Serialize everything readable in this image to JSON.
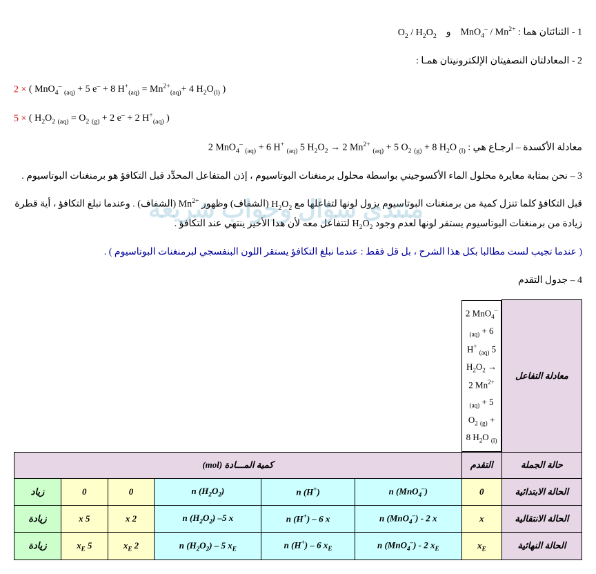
{
  "lines": {
    "l1_lead": "1 - الثنائتان هما :",
    "l1_pair1": "MnO₄⁻ / Mn²⁺",
    "l1_and": "و",
    "l1_pair2": "O₂ / H₂O₂",
    "l2": "2 - المعادلتان النصفيتان الإلكترونيتان همـا :",
    "eq1_coef": "2 ×",
    "eq1_body": "( MnO₄⁻ (aq)  +  5 e⁻ + 8 H⁺(aq)  = Mn²⁺(aq)+ 4 H₂O(l) )",
    "eq2_coef": "5 ×",
    "eq2_body": "( H₂O₂ (aq)   =  O₂ (g)  +  2 e⁻  + 2 H⁺(aq) )",
    "oxid_lead": "معادلة الأكسدة – ارجـاع هي :",
    "oxid_eq": "2 MnO₄⁻ (aq)  +  6 H⁺ (aq)  5 H₂O₂   →   2 Mn²⁺ (aq)  +  5 O₂ (g)  +  8 H₂O (l)",
    "l3": "3 – نحن بمثابة معايرة محلول الماء الأكسوجيني بواسطة  محلول برمنغنات البوتاسيوم  ، إذن المتفاعل المحدِّد قبل التكافؤ هو برمنغنات البوتاسيوم .",
    "p_before": "قبل التكافؤ كلما تنزل كمية من برمنغنات البوتاسيوم يزول لونها لتفاعلها مع",
    "p_h2o2": "H₂O₂",
    "p_mid": "(الشفاف) وظهور",
    "p_mn": "Mn²⁺",
    "p_after": "(الشفاف) . وعندما نبلغ التكافؤ ، أية قطرة زيادة من برمنغنات البوتاسيوم يستقر لونها لعدم وجود",
    "p_h2o2b": "H₂O₂",
    "p_end": "لتتفاعل معه لأن هذا الأخير ينتهي عند التكافؤ .",
    "note": "( عندما تجيب لست مطالبا بكل هذا الشرح ، بل قل فقط  : عندما نبلغ التكافؤ يستقر اللون البنفسجي لبرمنغنات البوتاسيوم ) .",
    "l4": "4 – جدول التقدم",
    "watermark": "منتدى سؤال وجواب شريعة"
  },
  "table": {
    "h_reaction": "معادلة التفاعل",
    "reaction": "2 MnO₄⁻ (aq)  +  6 H⁺ (aq)   5 H₂O₂       →       2 Mn²⁺ (aq)   +     5 O₂ (g)   +     8 H₂O (l)",
    "h_state": "حالة الجملة",
    "h_progress": "التقدم",
    "h_qty": "كمية المـــادة    (mol)",
    "rows": [
      {
        "state": "الحالة الابتدائية",
        "x": "0",
        "c1": "n (MnO₄⁻)",
        "c2": "n (H⁺)",
        "c3": "n (H₂O₂)",
        "c4": "0",
        "c5": "0",
        "c6": "زياد"
      },
      {
        "state": "الحالة الانتقالية",
        "x": "x",
        "c1": "n (MnO₄⁻) - 2 x",
        "c2": "n (H⁺) – 6  x",
        "c3": "n (H₂O₂) –5  x",
        "c4": "2 x",
        "c5": "5 x",
        "c6": "زيادة"
      },
      {
        "state": "الحالة النهائية",
        "x": "xE",
        "c1": "n (MnO₄⁻) - 2 xE",
        "c2": "n (H⁺) – 6  xE",
        "c3": "n (H₂O₂) – 5  xE",
        "c4": "2 xE",
        "c5": "5 xE",
        "c6": "زيادة"
      }
    ]
  },
  "style": {
    "red": "#c00",
    "blue": "#009",
    "hdr_bg": "#e6d6e6",
    "yellow": "#ffffcc",
    "cyan": "#ccffff",
    "green": "#ccffcc"
  }
}
